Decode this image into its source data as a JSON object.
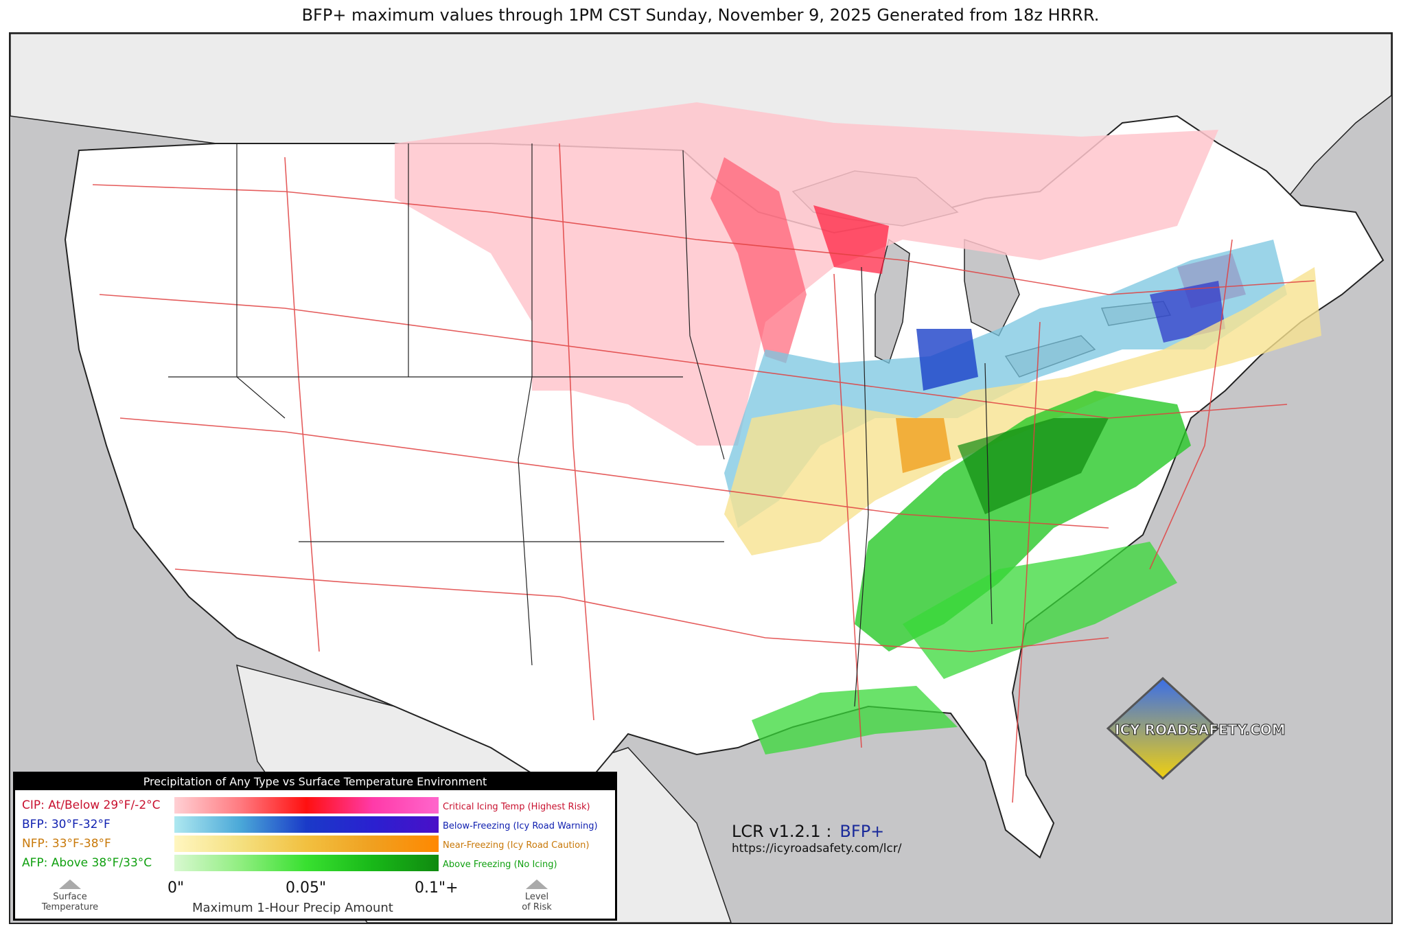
{
  "title": "BFP+ maximum values through 1PM CST Sunday, November 9, 2025 Generated from 18z HRRR.",
  "legend": {
    "header": "Precipitation of Any Type vs Surface Temperature Environment",
    "rows": [
      {
        "label": "CIP: At/Below 29°F/-2°C",
        "description": "Critical Icing Temp (Highest Risk)",
        "color": "#c8102e",
        "gradient": [
          "#ffd0d4",
          "#ff7a80",
          "#ff1010",
          "#ff3aa8",
          "#ff66cc"
        ]
      },
      {
        "label": "BFP: 30°F-32°F",
        "description": "Below-Freezing (Icy Road Warning)",
        "color": "#1020b0",
        "gradient": [
          "#aee8f0",
          "#4aa8d8",
          "#1a3ac8",
          "#2a20d0",
          "#4a10c8"
        ]
      },
      {
        "label": "NFP: 33°F-38°F",
        "description": "Near-Freezing (Icy Road Caution)",
        "color": "#c87808",
        "gradient": [
          "#fff6c0",
          "#f4e080",
          "#f2c040",
          "#f0a020",
          "#ff8800"
        ]
      },
      {
        "label": "AFP: Above 38°F/33°C",
        "description": "Above Freezing (No Icing)",
        "color": "#10a010",
        "gradient": [
          "#d8f8d0",
          "#90ee80",
          "#38e030",
          "#18b818",
          "#108a10"
        ]
      }
    ],
    "ticks": [
      "0\"",
      "0.05\"",
      "0.1\"+"
    ],
    "axis_title": "Maximum 1-Hour Precip Amount",
    "left_label": [
      "Surface",
      "Temperature"
    ],
    "right_label": [
      "Level",
      "of Risk"
    ]
  },
  "footer": {
    "version": "LCR v1.2.1 :",
    "product": "BFP+",
    "url": "https://icyroadsafety.com/lcr/"
  },
  "logo": {
    "text": "ICY ROADSAFETY.COM",
    "colors": [
      "#3a6ee8",
      "#f0d010"
    ]
  },
  "map_colors": {
    "ocean": "#c6c6c8",
    "land_us": "#ffffff",
    "land_other": "#ececec",
    "roads": "#e04040",
    "counties": "#cccccc",
    "states": "#222222"
  }
}
